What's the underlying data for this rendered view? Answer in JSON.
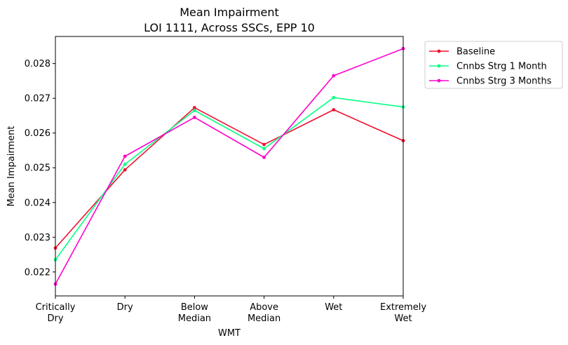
{
  "chart_data": {
    "type": "line",
    "title": "Mean Impairment",
    "subtitle": "LOI 1111, Across SSCs, EPP 10",
    "xlabel": "WMT",
    "ylabel": "Mean Impairment",
    "categories": [
      [
        "Critically",
        "Dry"
      ],
      [
        "Dry"
      ],
      [
        "Below",
        "Median"
      ],
      [
        "Above",
        "Median"
      ],
      [
        "Wet"
      ],
      [
        "Extremely",
        "Wet"
      ]
    ],
    "ylim": [
      0.02131,
      0.02878
    ],
    "yticks": [
      0.022,
      0.023,
      0.024,
      0.025,
      0.026,
      0.027,
      0.028
    ],
    "ytick_labels": [
      "0.022",
      "0.023",
      "0.024",
      "0.025",
      "0.026",
      "0.027",
      "0.028"
    ],
    "grid": false,
    "legend_position": "outside-top-right",
    "series": [
      {
        "name": "Baseline",
        "color": "#f0102e",
        "values": [
          0.02269,
          0.02494,
          0.02673,
          0.02567,
          0.02667,
          0.02578
        ]
      },
      {
        "name": "Cnnbs Strg 1 Month",
        "color": "#0aff86",
        "values": [
          0.02235,
          0.0251,
          0.02665,
          0.02555,
          0.02702,
          0.02675
        ]
      },
      {
        "name": "Cnnbs Strg 3 Months",
        "color": "#ff00cc",
        "values": [
          0.02165,
          0.02533,
          0.02645,
          0.0253,
          0.02765,
          0.02843
        ]
      }
    ]
  }
}
